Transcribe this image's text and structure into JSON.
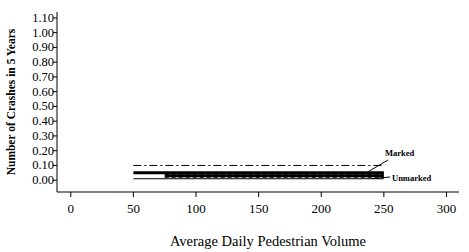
{
  "chart_data": {
    "type": "line",
    "x_label": "Average Daily Pedestrian Volume",
    "y_label": "Number of Crashes in 5 Years",
    "xlim": [
      -11,
      310
    ],
    "ylim": [
      -0.08,
      1.14
    ],
    "xticks": [
      0,
      50,
      100,
      150,
      200,
      250,
      300
    ],
    "yticks": [
      {
        "value": 0,
        "label": "0.00"
      },
      {
        "value": 0.1,
        "label": "0.10"
      },
      {
        "value": 0.2,
        "label": "0.20"
      },
      {
        "value": 0.3,
        "label": "0.30"
      },
      {
        "value": 0.4,
        "label": "0.40"
      },
      {
        "value": 0.5,
        "label": "0.50"
      },
      {
        "value": 0.6,
        "label": "0.60"
      },
      {
        "value": 0.7,
        "label": "0.70"
      },
      {
        "value": 0.8,
        "label": "0.80"
      },
      {
        "value": 0.9,
        "label": "0.90"
      },
      {
        "value": 1.0,
        "label": "1.00"
      },
      {
        "value": 1.1,
        "label": "1.10"
      }
    ],
    "grid": false,
    "series": [
      {
        "x": [
          50,
          250
        ],
        "values": [
          0.1,
          0.1
        ],
        "line_style": "dashdot",
        "color": "#000000"
      },
      {
        "x": [
          50,
          250
        ],
        "values": [
          0.05,
          0.05
        ],
        "line_style": "thick",
        "color": "#000000"
      },
      {
        "x": [
          50,
          250
        ],
        "values": [
          0.01,
          0.01
        ],
        "line_style": "solid",
        "color": "#000000"
      },
      {
        "x": [
          75,
          250
        ],
        "values": [
          0.04,
          0.04
        ],
        "line_style": "dashed",
        "color": "#000000"
      },
      {
        "x": [
          75,
          250
        ],
        "values": [
          0.03,
          0.03
        ],
        "line_style": "thick",
        "color": "#000000"
      },
      {
        "x": [
          75,
          250
        ],
        "values": [
          0.02,
          0.02
        ],
        "line_style": "dashed",
        "color": "#000000"
      }
    ],
    "annotations": [
      {
        "text": "Marked"
      },
      {
        "text": "Unmarked"
      }
    ]
  }
}
